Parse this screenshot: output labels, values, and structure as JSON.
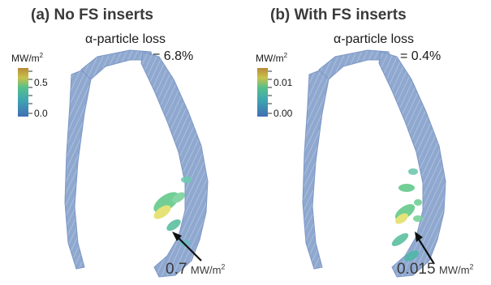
{
  "panels": [
    {
      "title": "(a) No FS inserts",
      "loss_label": "α-particle loss",
      "loss_value": "= 6.8%",
      "colorbar": {
        "unit": "MW/m",
        "unit_exp": "2",
        "ticks": [
          "0.5",
          "0.0"
        ]
      },
      "peak": {
        "value": "0.7",
        "unit": "MW/m",
        "unit_exp": "2"
      }
    },
    {
      "title": "(b) With FS inserts",
      "loss_label": "α-particle loss",
      "loss_value": "= 0.4%",
      "colorbar": {
        "unit": "MW/m",
        "unit_exp": "2",
        "ticks": [
          "0.01",
          "0.00"
        ]
      },
      "peak": {
        "value": "0.015",
        "unit": "MW/m",
        "unit_exp": "2"
      }
    }
  ],
  "colors": {
    "vessel_fill": "#8fa8cf",
    "vessel_edge": "#6f8cbf",
    "hot_green": "#63c98a",
    "hot_yellow": "#e3e06a",
    "colorbar_low": "#3f6fb5",
    "colorbar_mid": "#3fb3a0",
    "colorbar_high": "#c9a84a"
  }
}
